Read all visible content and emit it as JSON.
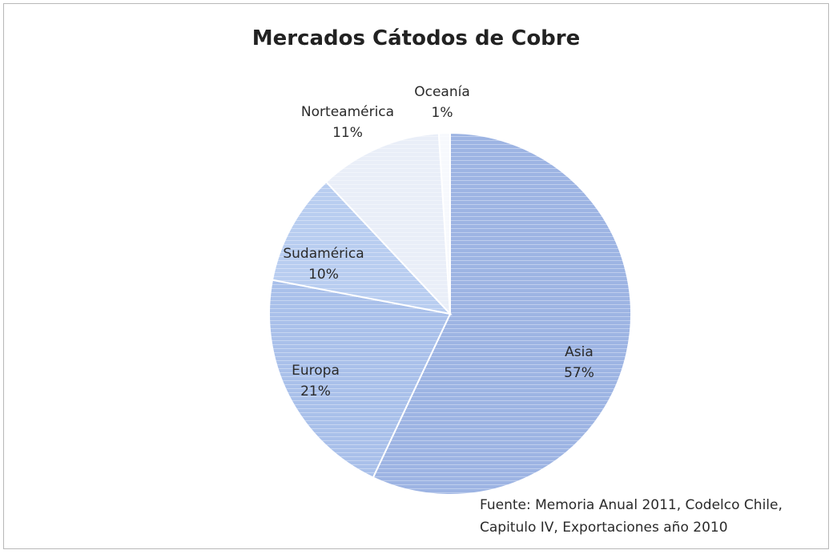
{
  "chart_data": {
    "type": "pie",
    "title": "Mercados Cátodos de Cobre",
    "slices": [
      {
        "name": "Asia",
        "value": 57,
        "label": "57%",
        "color": "#9db4e3"
      },
      {
        "name": "Europa",
        "value": 21,
        "label": "21%",
        "color": "#a9c0ea"
      },
      {
        "name": "Sudamérica",
        "value": 10,
        "label": "10%",
        "color": "#b8cdf0"
      },
      {
        "name": "Norteamérica",
        "value": 11,
        "label": "11%",
        "color": "#e9eef8"
      },
      {
        "name": "Oceanía",
        "value": 1,
        "label": "1%",
        "color": "#f7f9fd"
      }
    ],
    "source_lines": [
      "Fuente: Memoria Anual 2011, Codelco Chile,",
      "Capitulo IV, Exportaciones año 2010"
    ]
  }
}
